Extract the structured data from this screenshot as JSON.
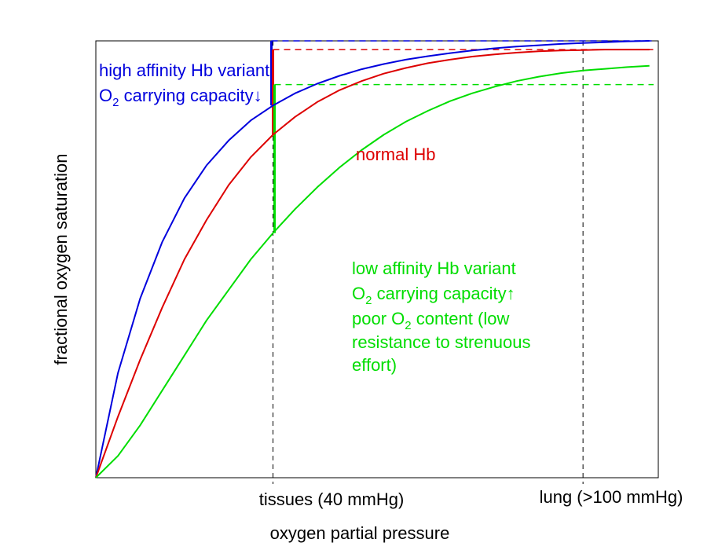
{
  "chart_data": {
    "type": "line",
    "title": "",
    "xlabel": "oxygen partial pressure",
    "ylabel": "fractional oxygen saturation",
    "xlim": [
      0,
      127
    ],
    "ylim": [
      0,
      1.0
    ],
    "x_ticks": [
      {
        "x": 40,
        "label": "tissues (40 mmHg)"
      },
      {
        "x": 110,
        "label": "lung (>100 mmHg)"
      }
    ],
    "x": [
      0,
      5,
      10,
      15,
      20,
      25,
      30,
      35,
      40,
      45,
      50,
      55,
      60,
      65,
      70,
      75,
      80,
      85,
      90,
      95,
      100,
      105,
      110,
      115,
      120,
      125
    ],
    "series": [
      {
        "name": "high affinity Hb variant",
        "color": "#0000dd",
        "values": [
          0.0,
          0.24,
          0.41,
          0.54,
          0.64,
          0.715,
          0.772,
          0.818,
          0.852,
          0.88,
          0.902,
          0.92,
          0.935,
          0.947,
          0.957,
          0.965,
          0.972,
          0.978,
          0.983,
          0.987,
          0.99,
          0.993,
          0.995,
          0.997,
          0.999,
          1.0
        ]
      },
      {
        "name": "normal Hb",
        "color": "#dd0000",
        "values": [
          0.0,
          0.14,
          0.27,
          0.39,
          0.5,
          0.59,
          0.67,
          0.734,
          0.785,
          0.826,
          0.86,
          0.887,
          0.908,
          0.925,
          0.938,
          0.949,
          0.957,
          0.964,
          0.969,
          0.973,
          0.976,
          0.978,
          0.979,
          0.98,
          0.98,
          0.98
        ]
      },
      {
        "name": "low affinity Hb variant",
        "color": "#00dd00",
        "values": [
          0.0,
          0.05,
          0.12,
          0.2,
          0.28,
          0.36,
          0.43,
          0.5,
          0.56,
          0.615,
          0.665,
          0.71,
          0.75,
          0.785,
          0.815,
          0.84,
          0.862,
          0.88,
          0.895,
          0.908,
          0.918,
          0.926,
          0.932,
          0.936,
          0.94,
          0.943
        ]
      }
    ],
    "reference_lines": [
      {
        "x": 40,
        "style": "dashed",
        "color": "#000000"
      },
      {
        "x": 110,
        "style": "dashed",
        "color": "#000000"
      }
    ],
    "capacity_markers": [
      {
        "series": "high affinity Hb variant",
        "color": "#0000dd",
        "x": 40,
        "y_low": 0.852,
        "y_high": 1.0
      },
      {
        "series": "normal Hb",
        "color": "#dd0000",
        "x": 40,
        "y_low": 0.785,
        "y_high": 0.98
      },
      {
        "series": "low affinity Hb variant",
        "color": "#00dd00",
        "x": 40,
        "y_low": 0.56,
        "y_high": 0.9
      }
    ],
    "grid": false,
    "legend": "none",
    "annotations": {
      "high": {
        "line1": "high affinity Hb variant",
        "line2": "O",
        "line2_sub": "2",
        "line2_rest": " carrying capacity",
        "arrow": "↓"
      },
      "normal": {
        "text": "normal Hb"
      },
      "low": {
        "line1": "low affinity Hb variant",
        "line2": "O",
        "line2_sub": "2",
        "line2_rest": " carrying capacity",
        "arrow": "↑",
        "line3_a": "poor O",
        "line3_sub": "2",
        "line3_b": " content (low",
        "line4": "resistance to strenuous",
        "line5": "effort)"
      }
    }
  }
}
